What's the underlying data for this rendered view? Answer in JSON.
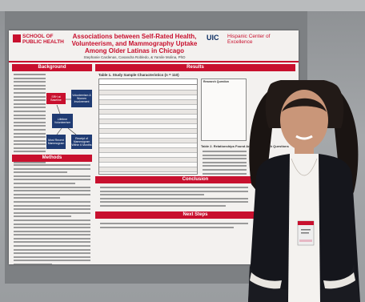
{
  "poster": {
    "school_logo": "SCHOOL OF\nPUBLIC HEALTH",
    "title": "Associations between Self-Rated Health, Volunteerism, and Mammography Uptake Among Older Latinas in Chicago",
    "authors": "Stephanie Cardenas, Casandra Robledo, & Yamile Molina, PhD",
    "uic_logo": "UIC",
    "center_logo": "Hispanic Center of Excellence",
    "sections": {
      "background": "Background",
      "methods": "Methods",
      "results": "Results",
      "conclusion": "Conclusion",
      "next_steps": "Next Steps"
    },
    "diagram": {
      "srh": "SRH at Baseline",
      "volunteer": "Volunteerism & Women Involvement",
      "lifetime": "Lifetime Volunteerism",
      "recent": "Most Recent Mammogram",
      "receipt": "Receipt of Mammogram Within 6 Months"
    },
    "table_title": "Table 1. Study Sample Characteristics (n = 110)",
    "table2_title": "Table 2. Relationships Found Among Research Questions",
    "flow_top": "Research Question"
  },
  "colors": {
    "accent": "#c8102e",
    "navy": "#0b2d62",
    "diagram_blue": "#1f3b73"
  }
}
